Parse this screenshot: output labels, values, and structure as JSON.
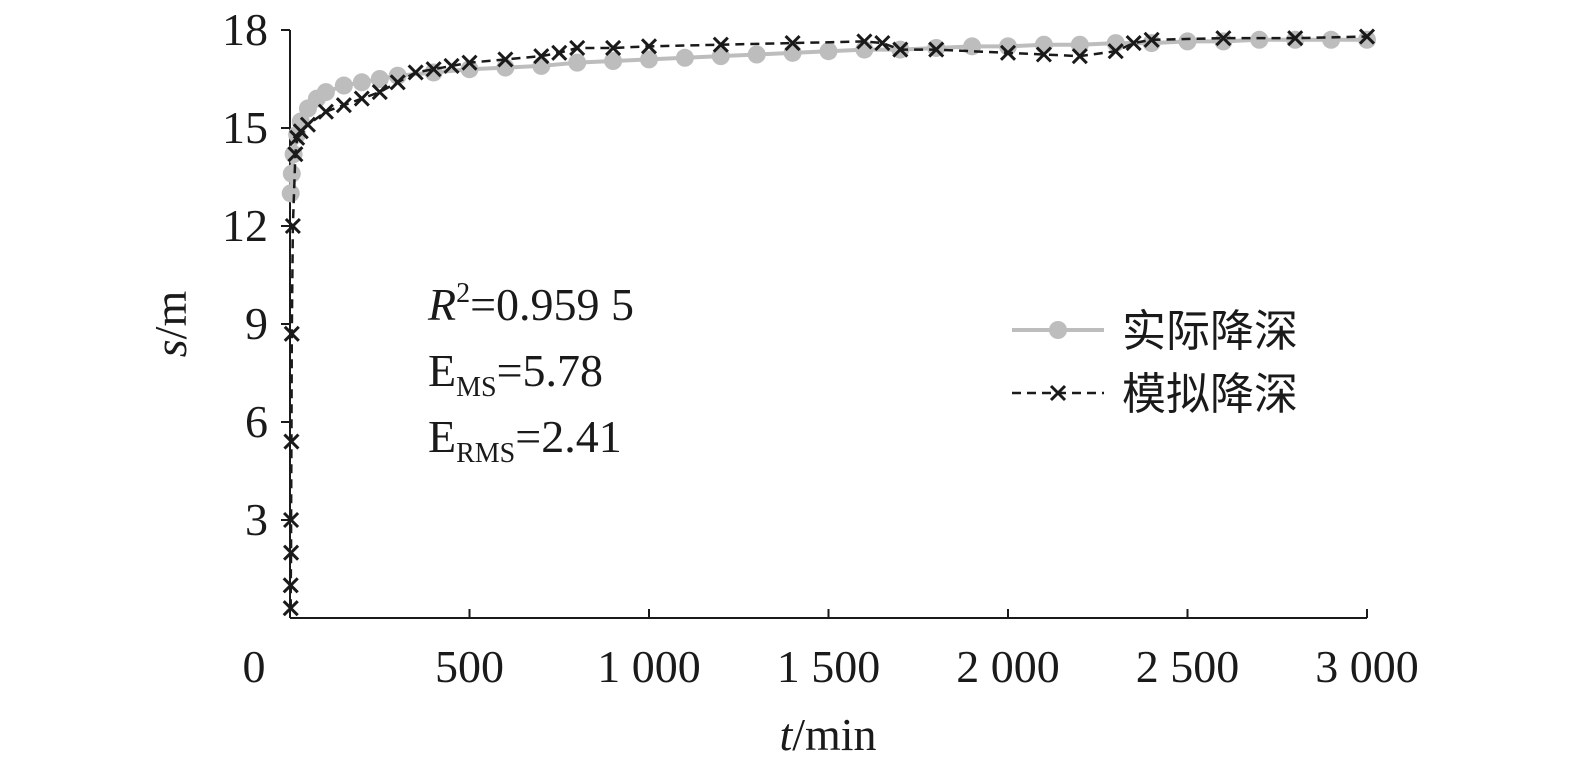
{
  "chart_data": {
    "type": "line",
    "x_label": {
      "symbol": "t",
      "unit": "/min"
    },
    "y_label": {
      "symbol": "s",
      "unit": "/m"
    },
    "xlim": [
      0,
      3000
    ],
    "ylim": [
      0,
      18
    ],
    "xticks": [
      0,
      500,
      {
        "value": 1000,
        "label": "1 000"
      },
      {
        "value": 1500,
        "label": "1 500"
      },
      {
        "value": 2000,
        "label": "2 000"
      },
      {
        "value": 2500,
        "label": "2 500"
      },
      {
        "value": 3000,
        "label": "3 000"
      }
    ],
    "yticks": [
      3,
      6,
      9,
      12,
      15,
      18
    ],
    "legend": "right",
    "annotations": [
      {
        "main": "R",
        "sup": "2",
        "text": "=0.959 5"
      },
      {
        "main": "E",
        "sub": "MS",
        "text": "=5.78"
      },
      {
        "main": "E",
        "sub": "RMS",
        "text": "=2.41"
      }
    ],
    "series": [
      {
        "name": "实际降深",
        "color": "#bdbdbd",
        "style": "circle",
        "x": [
          2,
          5,
          10,
          20,
          30,
          50,
          75,
          100,
          150,
          200,
          250,
          300,
          400,
          500,
          600,
          700,
          800,
          900,
          1000,
          1100,
          1200,
          1300,
          1400,
          1500,
          1600,
          1700,
          1800,
          1900,
          2000,
          2100,
          2200,
          2300,
          2400,
          2500,
          2600,
          2700,
          2800,
          2900,
          3000
        ],
        "values": [
          13.0,
          13.6,
          14.2,
          14.8,
          15.2,
          15.6,
          15.9,
          16.1,
          16.3,
          16.4,
          16.5,
          16.6,
          16.7,
          16.8,
          16.85,
          16.9,
          17.0,
          17.05,
          17.1,
          17.15,
          17.2,
          17.25,
          17.3,
          17.35,
          17.4,
          17.4,
          17.45,
          17.5,
          17.5,
          17.55,
          17.55,
          17.6,
          17.6,
          17.65,
          17.65,
          17.7,
          17.7,
          17.7,
          17.7
        ]
      },
      {
        "name": "模拟降深",
        "color": "#1a1a1a",
        "style": "cross",
        "x": [
          2,
          2,
          3,
          3,
          4,
          5,
          8,
          15,
          20,
          30,
          50,
          100,
          150,
          200,
          250,
          300,
          350,
          400,
          450,
          500,
          600,
          700,
          750,
          800,
          900,
          1000,
          1200,
          1400,
          1600,
          1650,
          1700,
          1800,
          2000,
          2100,
          2200,
          2300,
          2350,
          2400,
          2600,
          2800,
          3000
        ],
        "values": [
          0.3,
          1.0,
          2.0,
          3.0,
          5.4,
          8.7,
          12.0,
          14.2,
          14.7,
          14.9,
          15.1,
          15.5,
          15.7,
          15.9,
          16.1,
          16.4,
          16.7,
          16.8,
          16.9,
          17.0,
          17.1,
          17.2,
          17.3,
          17.45,
          17.45,
          17.5,
          17.55,
          17.6,
          17.65,
          17.6,
          17.4,
          17.4,
          17.3,
          17.25,
          17.2,
          17.35,
          17.6,
          17.7,
          17.75,
          17.75,
          17.8
        ]
      }
    ]
  }
}
